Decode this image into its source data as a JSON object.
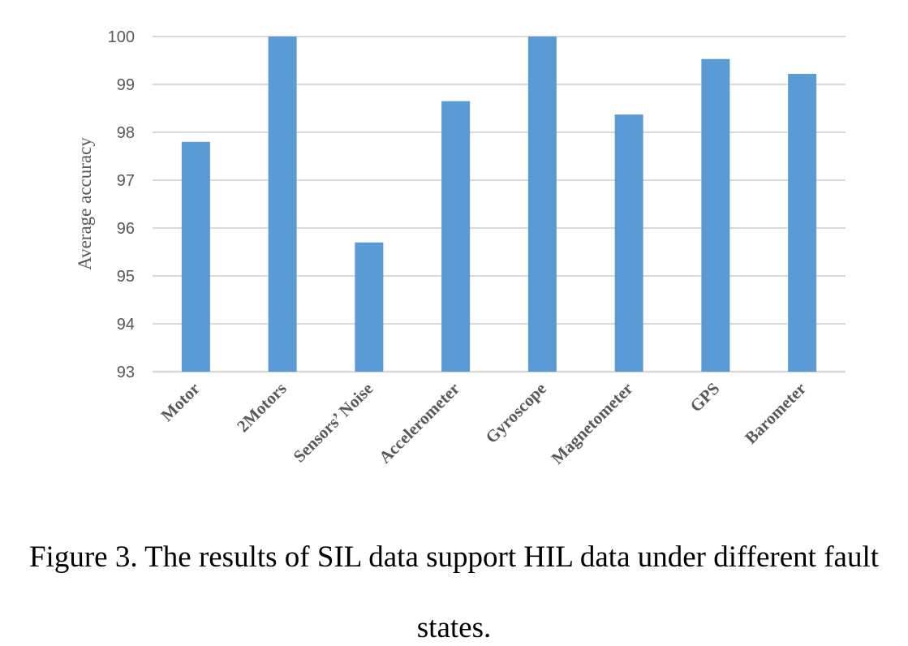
{
  "chart_data": {
    "type": "bar",
    "categories": [
      "Motor",
      "2Motors",
      "Sensors’ Noise",
      "Accelerometer",
      "Gyroscope",
      "Magnetometer",
      "GPS",
      "Barometer"
    ],
    "values": [
      97.8,
      100,
      95.7,
      98.65,
      100,
      98.37,
      99.53,
      99.22
    ],
    "ylabel": "Average accuracy",
    "xlabel": "",
    "ylim": [
      93,
      100
    ],
    "yticks": [
      93,
      94,
      95,
      96,
      97,
      98,
      99,
      100
    ],
    "grid": true,
    "bar_color": "#5b9bd5",
    "grid_color": "#d9d9d9"
  },
  "caption": {
    "line1": "Figure 3. The results of SIL data support HIL data under different fault",
    "line2": "states."
  }
}
